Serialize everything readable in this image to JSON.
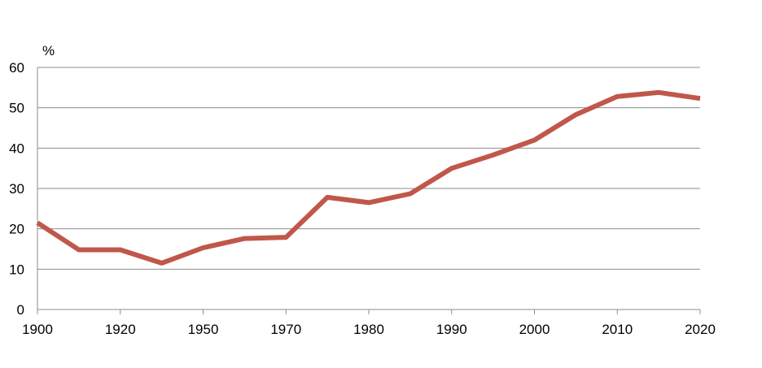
{
  "chart_data": {
    "type": "line",
    "y_unit_label": "%",
    "ylim": [
      0,
      60
    ],
    "yticks": [
      0,
      10,
      20,
      30,
      40,
      50,
      60
    ],
    "grid": true,
    "x_tick_labels": [
      "1900",
      "1920",
      "1950",
      "1970",
      "1980",
      "1990",
      "2000",
      "2010",
      "2020"
    ],
    "series": [
      {
        "color": "#c0574a",
        "x": [
          "1900",
          "",
          "1920",
          "",
          "1950",
          "",
          "1970",
          "",
          "1980",
          "",
          "1990",
          "",
          "2000",
          "",
          "2010",
          "",
          "2020"
        ],
        "values": [
          21.5,
          14.8,
          14.8,
          11.5,
          15.3,
          17.6,
          17.9,
          27.8,
          26.5,
          28.7,
          35.0,
          38.3,
          42.0,
          48.3,
          52.8,
          53.8,
          52.3
        ]
      }
    ],
    "colors": {
      "line": "#c0574a",
      "grid": "#8c8c8c",
      "axis": "#8c8c8c",
      "text": "#000000"
    }
  }
}
